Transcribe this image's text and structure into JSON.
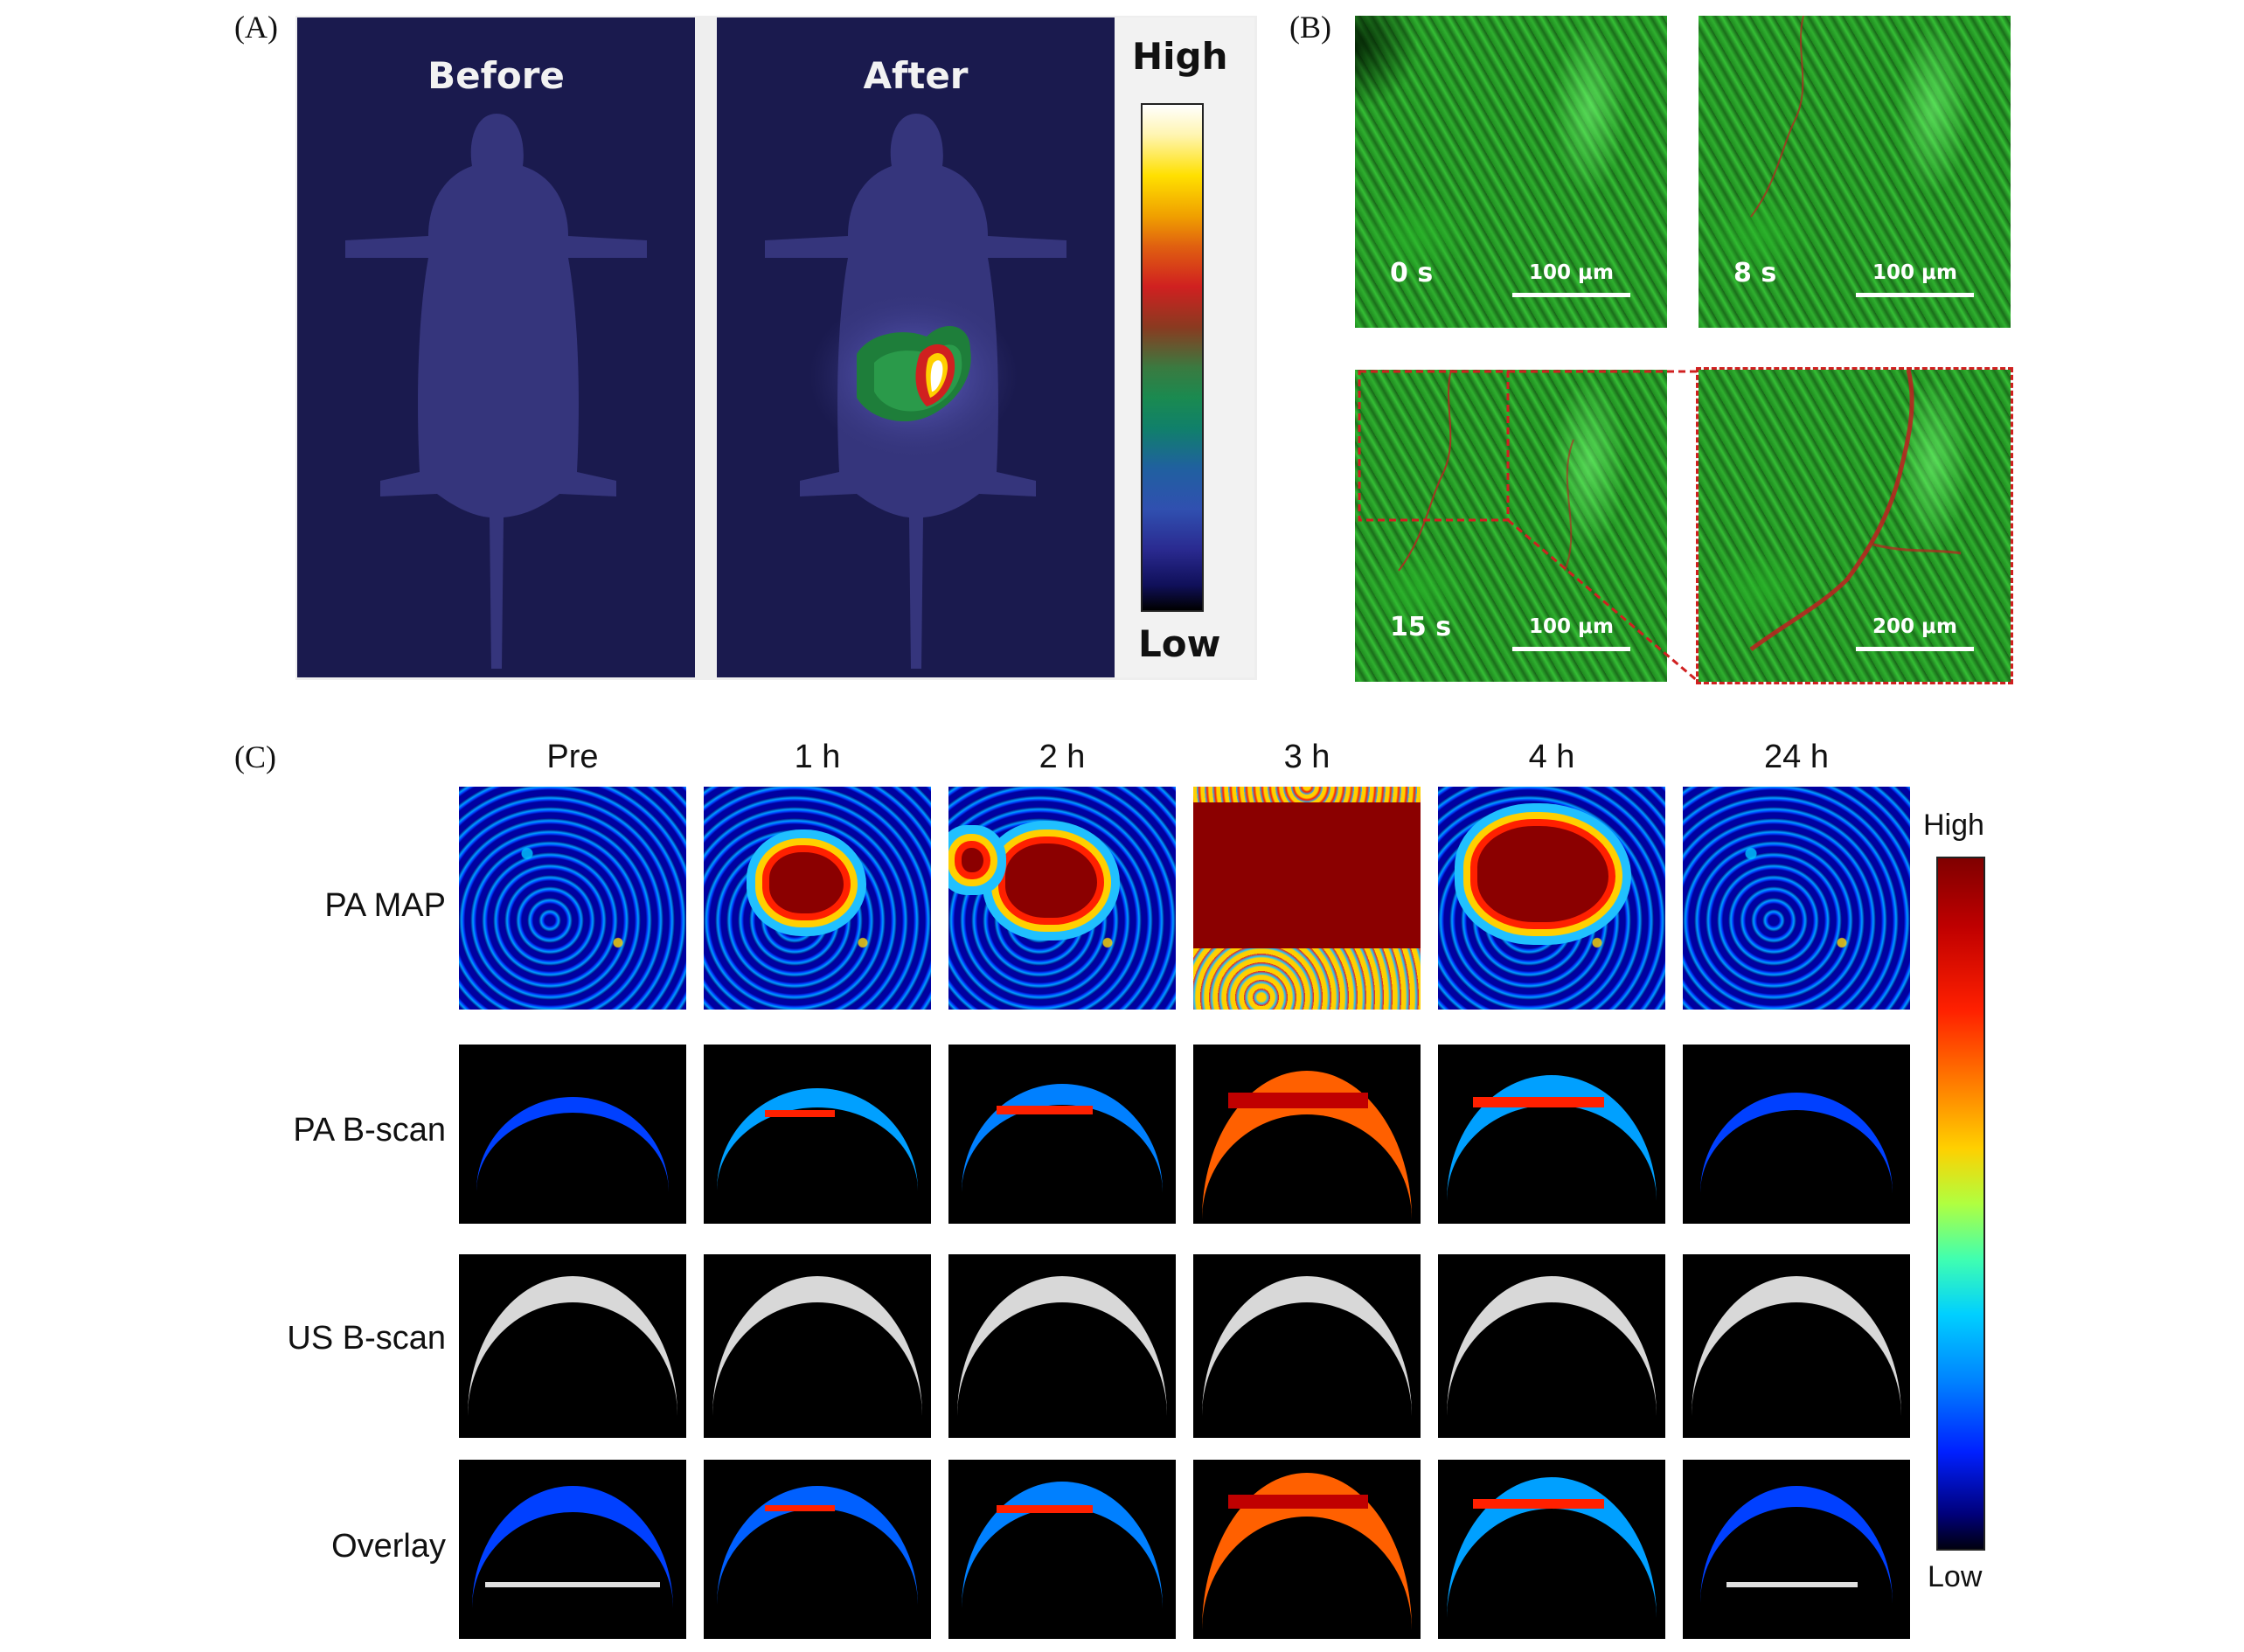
{
  "panel_a": {
    "label": "(A)",
    "before_title": "Before",
    "after_title": "After",
    "colorbar_high": "High",
    "colorbar_low": "Low"
  },
  "panel_b": {
    "label": "(B)",
    "tiles": [
      {
        "time": "0 s",
        "scale": "100 μm"
      },
      {
        "time": "8 s",
        "scale": "100 μm"
      },
      {
        "time": "15 s",
        "scale": "100 μm"
      },
      {
        "time": "",
        "scale": "200 μm"
      }
    ]
  },
  "panel_c": {
    "label": "(C)",
    "columns": [
      "Pre",
      "1 h",
      "2 h",
      "3 h",
      "4 h",
      "24 h"
    ],
    "rows": [
      "PA MAP",
      "PA B-scan",
      "US B-scan",
      "Overlay"
    ],
    "colorbar_high": "High",
    "colorbar_low": "Low"
  }
}
